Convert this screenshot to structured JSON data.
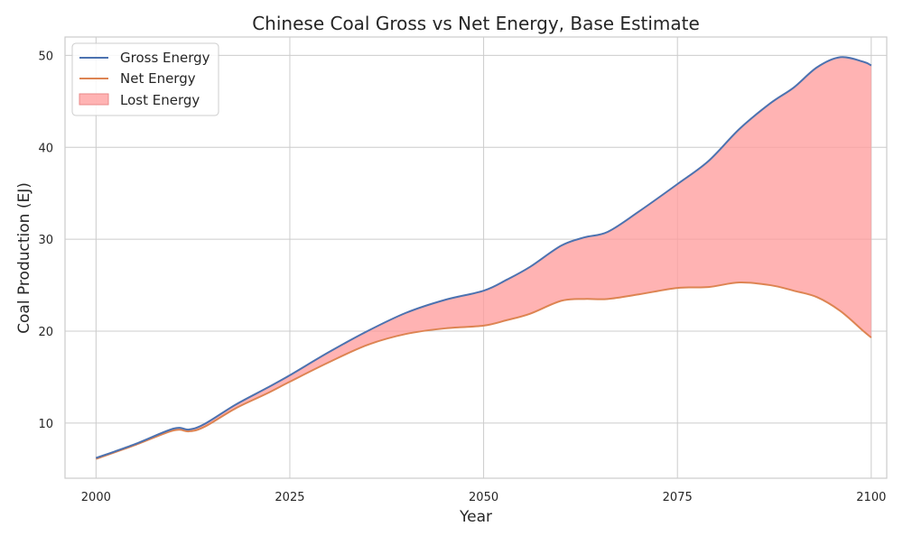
{
  "chart_data": {
    "type": "line",
    "title": "Chinese Coal Gross vs Net Energy, Base Estimate",
    "xlabel": "Year",
    "ylabel": "Coal Production (EJ)",
    "xlim": [
      1996,
      2102
    ],
    "ylim": [
      4,
      52
    ],
    "xticks": [
      2000,
      2025,
      2050,
      2075,
      2100
    ],
    "yticks": [
      10,
      20,
      30,
      40,
      50
    ],
    "grid": true,
    "legend_position": "top-left",
    "x": [
      2000,
      2005,
      2010,
      2012,
      2014,
      2018,
      2022,
      2025,
      2030,
      2035,
      2040,
      2045,
      2050,
      2053,
      2056,
      2060,
      2063,
      2066,
      2070,
      2075,
      2079,
      2083,
      2087,
      2090,
      2093,
      2096,
      2099,
      2100
    ],
    "series": [
      {
        "name": "Gross Energy",
        "color": "#4c72b0",
        "values": [
          6.2,
          7.7,
          9.4,
          9.3,
          9.9,
          12.0,
          13.8,
          15.2,
          17.7,
          20.0,
          22.0,
          23.4,
          24.4,
          25.6,
          27.0,
          29.3,
          30.2,
          30.8,
          33.0,
          36.0,
          38.5,
          42.0,
          44.8,
          46.5,
          48.7,
          49.8,
          49.3,
          48.9
        ]
      },
      {
        "name": "Net Energy",
        "color": "#dd8452",
        "values": [
          6.1,
          7.6,
          9.2,
          9.1,
          9.6,
          11.6,
          13.2,
          14.5,
          16.6,
          18.5,
          19.7,
          20.3,
          20.6,
          21.2,
          21.9,
          23.3,
          23.5,
          23.5,
          24.0,
          24.7,
          24.8,
          25.3,
          25.0,
          24.4,
          23.7,
          22.2,
          20.0,
          19.3
        ]
      }
    ],
    "fill": {
      "name": "Lost Energy",
      "color": "#ff9a9a"
    }
  }
}
